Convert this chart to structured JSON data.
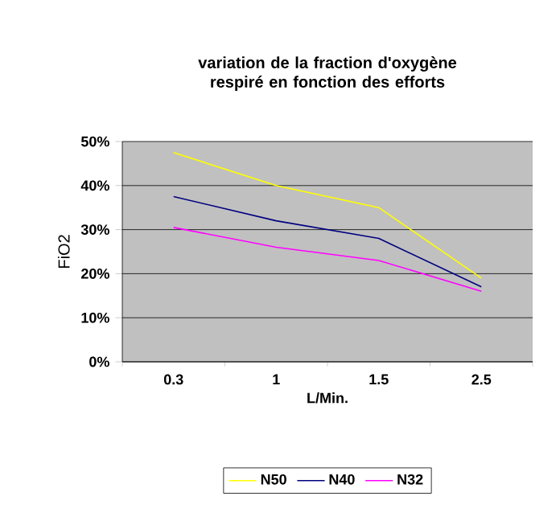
{
  "chart_data": {
    "type": "line",
    "title": "variation de la fraction d'oxygène respiré en fonction des efforts",
    "xlabel": "L/Min.",
    "ylabel": "FiO2",
    "categories": [
      "0.3",
      "1",
      "1.5",
      "2.5"
    ],
    "series": [
      {
        "name": "N50",
        "color": "#ffff00",
        "values": [
          47.5,
          40,
          35,
          19
        ]
      },
      {
        "name": "N40",
        "color": "#000080",
        "values": [
          37.5,
          32,
          28,
          17
        ]
      },
      {
        "name": "N32",
        "color": "#ff00ff",
        "values": [
          30.5,
          26,
          23,
          16
        ]
      }
    ],
    "ylim": [
      0,
      50
    ],
    "yticks": [
      {
        "value": 0,
        "label": "0%"
      },
      {
        "value": 10,
        "label": "10%"
      },
      {
        "value": 20,
        "label": "20%"
      },
      {
        "value": 30,
        "label": "30%"
      },
      {
        "value": 40,
        "label": "40%"
      },
      {
        "value": 50,
        "label": "50%"
      }
    ],
    "grid": "y",
    "legend": "bottom",
    "marker": "none",
    "line_style": "solid"
  }
}
